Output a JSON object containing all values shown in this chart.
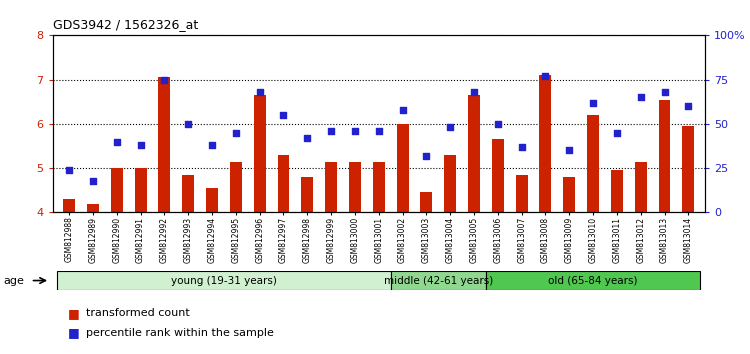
{
  "title": "GDS3942 / 1562326_at",
  "samples": [
    "GSM812988",
    "GSM812989",
    "GSM812990",
    "GSM812991",
    "GSM812992",
    "GSM812993",
    "GSM812994",
    "GSM812995",
    "GSM812996",
    "GSM812997",
    "GSM812998",
    "GSM812999",
    "GSM813000",
    "GSM813001",
    "GSM813002",
    "GSM813003",
    "GSM813004",
    "GSM813005",
    "GSM813006",
    "GSM813007",
    "GSM813008",
    "GSM813009",
    "GSM813010",
    "GSM813011",
    "GSM813012",
    "GSM813013",
    "GSM813014"
  ],
  "bar_values": [
    4.3,
    4.2,
    5.0,
    5.0,
    7.05,
    4.85,
    4.55,
    5.15,
    6.65,
    5.3,
    4.8,
    5.15,
    5.15,
    5.15,
    6.0,
    4.45,
    5.3,
    6.65,
    5.65,
    4.85,
    7.1,
    4.8,
    6.2,
    4.95,
    5.15,
    6.55,
    5.95
  ],
  "dot_values": [
    24,
    18,
    40,
    38,
    75,
    50,
    38,
    45,
    68,
    55,
    42,
    46,
    46,
    46,
    58,
    32,
    48,
    68,
    50,
    37,
    77,
    35,
    62,
    45,
    65,
    68,
    60
  ],
  "groups": [
    {
      "label": "young (19-31 years)",
      "start": 0,
      "end": 14,
      "color": "#d0f0d0"
    },
    {
      "label": "middle (42-61 years)",
      "start": 14,
      "end": 18,
      "color": "#90d890"
    },
    {
      "label": "old (65-84 years)",
      "start": 18,
      "end": 27,
      "color": "#50c850"
    }
  ],
  "ylim_left": [
    4.0,
    8.0
  ],
  "ylim_right": [
    0,
    100
  ],
  "yticks_left": [
    4,
    5,
    6,
    7,
    8
  ],
  "yticks_right": [
    0,
    25,
    50,
    75,
    100
  ],
  "ytick_labels_right": [
    "0",
    "25",
    "50",
    "75",
    "100%"
  ],
  "bar_color": "#cc2200",
  "dot_color": "#2222cc",
  "bar_bottom": 4.0,
  "legend_items": [
    {
      "label": "transformed count",
      "color": "#cc2200"
    },
    {
      "label": "percentile rank within the sample",
      "color": "#2222cc"
    }
  ]
}
